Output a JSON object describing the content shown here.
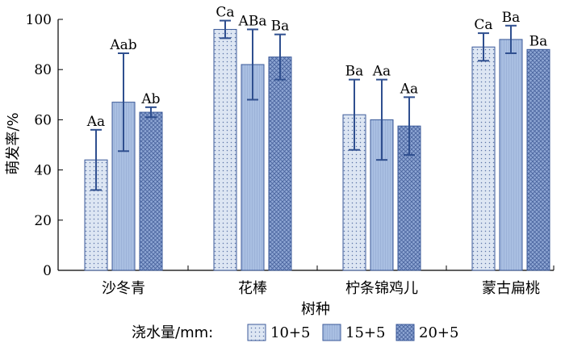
{
  "chart_data": {
    "type": "bar",
    "xlabel": "树种",
    "ylabel": "萌发率/%",
    "ylim": [
      0,
      100
    ],
    "yticks": [
      0,
      20,
      40,
      60,
      80,
      100
    ],
    "categories": [
      "沙冬青",
      "花棒",
      "柠条锦鸡儿",
      "蒙古扁桃"
    ],
    "legend_title": "浇水量/mm:",
    "legend_position": "bottom",
    "grid": false,
    "series": [
      {
        "name": "10+5",
        "pattern": "dots",
        "color": "#dde6f3",
        "values": [
          44,
          96,
          62,
          89
        ],
        "errors": [
          12,
          3.5,
          14,
          5.5
        ],
        "labels": [
          "Aa",
          "Ca",
          "Ba",
          "Ca"
        ]
      },
      {
        "name": "15+5",
        "pattern": "lines",
        "color": "#a9bfe2",
        "values": [
          67,
          82,
          60,
          92
        ],
        "errors": [
          19.5,
          14,
          16,
          5.5
        ],
        "labels": [
          "Aab",
          "ABa",
          "Aa",
          "Ba"
        ]
      },
      {
        "name": "20+5",
        "pattern": "crosshatch",
        "color": "#8ea6d4",
        "values": [
          63,
          85,
          57.5,
          88
        ],
        "errors": [
          2,
          9,
          11.5,
          0
        ],
        "labels": [
          "Ab",
          "Ba",
          "Aa",
          "Ba"
        ]
      }
    ],
    "colors": {
      "bar_stroke": "#3b5a9a",
      "error_bar": "#2f4f8f",
      "axis": "#000000"
    }
  }
}
